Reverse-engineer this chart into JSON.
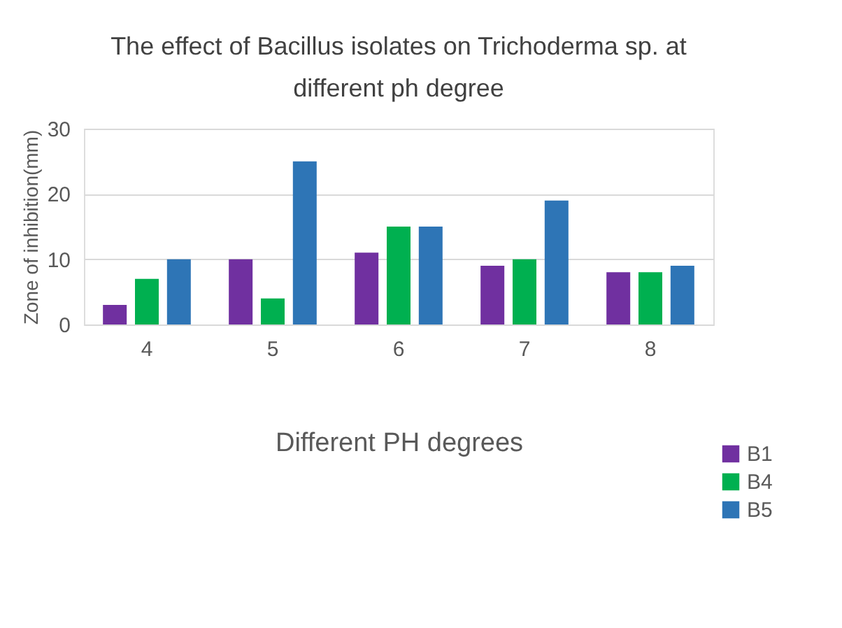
{
  "chart_data": {
    "type": "bar",
    "title": "The effect of Bacillus isolates on Trichoderma sp. at different ph degree",
    "xlabel": "Different PH degrees",
    "ylabel": "Zone of inhibition(mm)",
    "categories": [
      "4",
      "5",
      "6",
      "7",
      "8"
    ],
    "series": [
      {
        "name": "B1",
        "color": "#7030a0",
        "values": [
          3,
          10,
          11,
          9,
          8
        ]
      },
      {
        "name": "B4",
        "color": "#00b050",
        "values": [
          7,
          4,
          15,
          10,
          8
        ]
      },
      {
        "name": "B5",
        "color": "#2e75b6",
        "values": [
          10,
          25,
          15,
          19,
          9
        ]
      }
    ],
    "ylim": [
      0,
      30
    ],
    "yticks": [
      0,
      10,
      20,
      30
    ],
    "grid": "y",
    "legend": "bottom right"
  }
}
